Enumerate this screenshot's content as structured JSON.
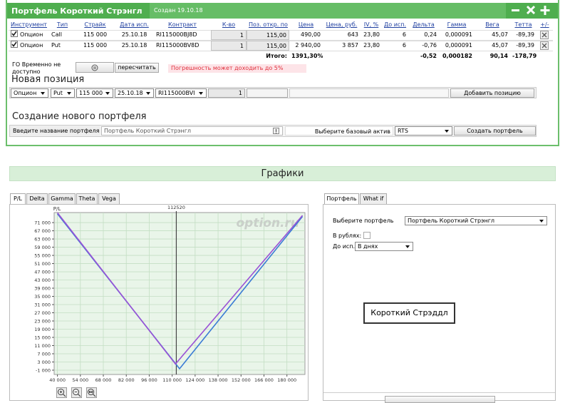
{
  "header": {
    "title": "Портфель Короткий Стрэнгл",
    "created": "Создан 19.10.18"
  },
  "table": {
    "columns": [
      "Инструмент",
      "Тип",
      "Страйк",
      "Дата исп.",
      "Контракт",
      "К-во",
      "Поз. откр. по",
      "Цена",
      "Цена, руб.",
      "IV, %",
      "До исп.",
      "Дельта",
      "Гамма",
      "Вега",
      "Тетта",
      "+/-"
    ],
    "rows": [
      [
        "Опцион",
        "Call",
        "115 000",
        "25.10.18",
        "RI115000BJ8D",
        "1",
        "115,00",
        "490,00",
        "643",
        "23,80",
        "6",
        "0,24",
        "0,000091",
        "45,07",
        "-89,39"
      ],
      [
        "Опцион",
        "Put",
        "115 000",
        "25.10.18",
        "RI115000BV8D",
        "1",
        "115,00",
        "2 940,00",
        "3 857",
        "23,80",
        "6",
        "-0,76",
        "0,000091",
        "45,07",
        "-89,39"
      ]
    ],
    "totals": {
      "label": "Итого:",
      "price": "1391,30%",
      "delta": "-0,52",
      "gamma": "0,000182",
      "vega": "90,14",
      "theta": "-178,79"
    }
  },
  "margin": {
    "label": "ГО Временно не доступно",
    "recalculate": "пересчитать",
    "warning": "Погрешность может доходить до 5%"
  },
  "new_position": {
    "title": "Новая позиция",
    "instrument": "Опцион",
    "type": "Put",
    "strike": "115 000",
    "date": "25.10.18",
    "contract": "RI115000BVI",
    "quantity": "1",
    "add": "Добавить позицию"
  },
  "new_portfolio": {
    "title": "Создание нового портфеля",
    "name_label": "Введите название портфеля",
    "name": "Портфель Короткий Стрэнгл",
    "asset_label": "Выберите базовый актив",
    "asset": "RTS",
    "create": "Создать портфель"
  },
  "charts_title": "Графики",
  "chart_tabs": [
    "P/L",
    "Delta",
    "Gamma",
    "Theta",
    "Vega"
  ],
  "chart_data": {
    "type": "line",
    "y_label": "P/L",
    "watermark": "option.ru",
    "marker": 112520,
    "xlim": [
      38000,
      191000
    ],
    "ylim": [
      -3100,
      75900
    ],
    "xticks": [
      {
        "value": 40000,
        "label": "40 000"
      },
      {
        "value": 54000,
        "label": "54 000"
      },
      {
        "value": 68000,
        "label": "68 000"
      },
      {
        "value": 82000,
        "label": "82 000"
      },
      {
        "value": 96000,
        "label": "96 000"
      },
      {
        "value": 110000,
        "label": "110 000"
      },
      {
        "value": 124000,
        "label": "124 000"
      },
      {
        "value": 138000,
        "label": "138 000"
      },
      {
        "value": 152000,
        "label": "152 000"
      },
      {
        "value": 166000,
        "label": "166 000"
      },
      {
        "value": 180000,
        "label": "180 000"
      }
    ],
    "yticks": [
      {
        "value": -1000,
        "label": "-1 000"
      },
      {
        "value": 3000,
        "label": "3 000"
      },
      {
        "value": 7000,
        "label": "7 000"
      },
      {
        "value": 11000,
        "label": "11 000"
      },
      {
        "value": 15000,
        "label": "15 000"
      },
      {
        "value": 19000,
        "label": "19 000"
      },
      {
        "value": 23000,
        "label": "23 000"
      },
      {
        "value": 27000,
        "label": "27 000"
      },
      {
        "value": 31000,
        "label": "31 000"
      },
      {
        "value": 35000,
        "label": "35 000"
      },
      {
        "value": 39000,
        "label": "39 000"
      },
      {
        "value": 43000,
        "label": "43 000"
      },
      {
        "value": 47000,
        "label": "47 000"
      },
      {
        "value": 51000,
        "label": "51 000"
      },
      {
        "value": 55000,
        "label": "55 000"
      },
      {
        "value": 59000,
        "label": "59 000"
      },
      {
        "value": 63000,
        "label": "63 000"
      },
      {
        "value": 67000,
        "label": "67 000"
      },
      {
        "value": 71000,
        "label": "71 000"
      }
    ],
    "grid": true,
    "series": [
      {
        "color": "#3a7bd5",
        "x": [
          40000,
          114500,
          189500
        ],
        "values": [
          75300,
          -300,
          74000
        ]
      },
      {
        "color": "#9a52d6",
        "x": [
          40000,
          112000,
          189500
        ],
        "values": [
          75800,
          2000,
          74500
        ]
      }
    ]
  },
  "side": {
    "tabs": [
      "Портфель",
      "What if"
    ],
    "portfolio_label": "Выберите портфель",
    "portfolio": "Портфель Короткий Стрэнгл",
    "rubles_label": "В рублях:",
    "expiry_label": "До исп.:",
    "expiry": "В днях",
    "strategy": "Короткий Стрэддл"
  }
}
